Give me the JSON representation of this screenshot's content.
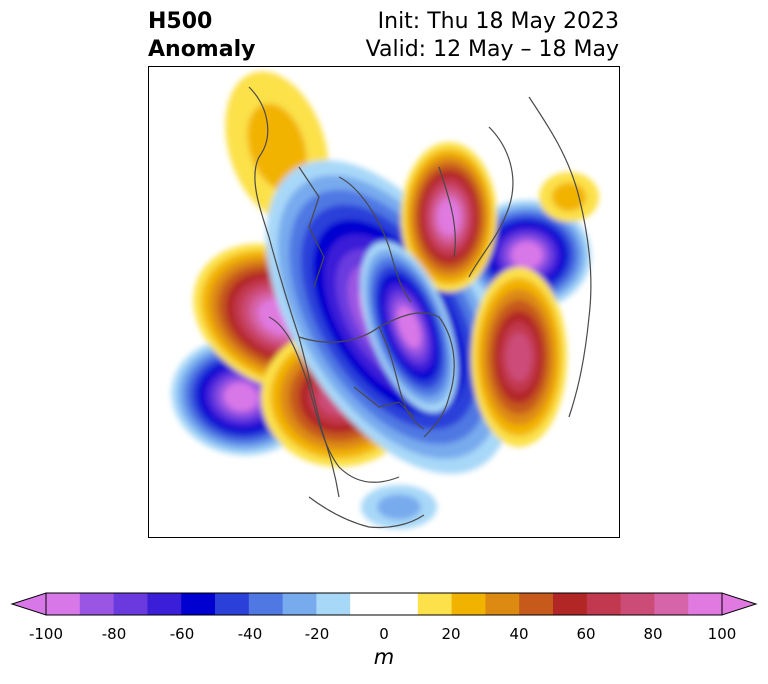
{
  "header": {
    "left_line1": "H500",
    "left_line2": "Anomaly",
    "right_line1": "Init: Thu 18 May 2023",
    "right_line2": "Valid: 12 May – 18 May"
  },
  "colorbar": {
    "tick_labels": [
      "-100",
      "-80",
      "-60",
      "-40",
      "-20",
      "0",
      "20",
      "40",
      "60",
      "80",
      "100"
    ],
    "unit": "m",
    "colors": [
      "#d877e8",
      "#9b55e3",
      "#6a3adf",
      "#3b1fd8",
      "#0000d0",
      "#2b3fd9",
      "#4f78e3",
      "#78aaee",
      "#a8d8f8",
      "#ffffff",
      "#ffffff",
      "#fce14a",
      "#f2b300",
      "#dd8a12",
      "#c65a1a",
      "#b22726",
      "#c2384e",
      "#cc4c78",
      "#d664a8",
      "#e079e0"
    ],
    "extend": "both"
  },
  "map": {
    "projection": "north-polar-stereographic",
    "anomalies": [
      {
        "name": "ridge-nw-canada",
        "sign": "positive",
        "peak_m": 20
      },
      {
        "name": "trough-north-pacific",
        "sign": "negative",
        "peak_m": -100
      },
      {
        "name": "ridge-pacific-northwest",
        "sign": "positive",
        "peak_m": 100
      },
      {
        "name": "ridge-western-us",
        "sign": "positive",
        "peak_m": 80
      },
      {
        "name": "trough-arctic",
        "sign": "negative",
        "peak_m": -100
      },
      {
        "name": "trough-baffin",
        "sign": "negative",
        "peak_m": -100
      },
      {
        "name": "ridge-north-atlantic",
        "sign": "positive",
        "peak_m": 100
      },
      {
        "name": "ridge-siberia",
        "sign": "positive",
        "peak_m": 80
      },
      {
        "name": "trough-eurasia",
        "sign": "negative",
        "peak_m": -100
      },
      {
        "name": "ridge-arabia",
        "sign": "positive",
        "peak_m": 20
      },
      {
        "name": "trough-gulf-of-mexico",
        "sign": "negative",
        "peak_m": -20
      }
    ]
  }
}
